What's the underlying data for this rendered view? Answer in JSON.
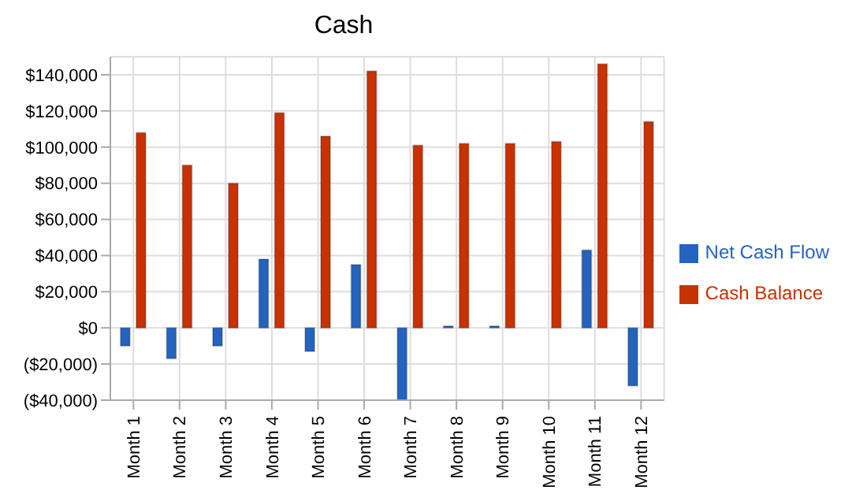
{
  "chart_data": {
    "type": "bar",
    "title": "Cash",
    "categories": [
      "Month 1",
      "Month 2",
      "Month 3",
      "Month 4",
      "Month 5",
      "Month 6",
      "Month 7",
      "Month 8",
      "Month 9",
      "Month 10",
      "Month 11",
      "Month 12"
    ],
    "series": [
      {
        "name": "Net Cash Flow",
        "color": "#2563c0",
        "values": [
          -10000,
          -17000,
          -10000,
          38000,
          -13000,
          35000,
          -40000,
          1000,
          1000,
          0,
          43000,
          -32000
        ]
      },
      {
        "name": "Cash Balance",
        "color": "#c83200",
        "values": [
          108000,
          90000,
          80000,
          119000,
          106000,
          142000,
          101000,
          102000,
          102000,
          103000,
          146000,
          114000
        ]
      }
    ],
    "ylim": [
      -40000,
      150000
    ],
    "yticks": [
      {
        "value": -40000,
        "label": "($40,000)"
      },
      {
        "value": -20000,
        "label": "($20,000)"
      },
      {
        "value": 0,
        "label": "$0"
      },
      {
        "value": 20000,
        "label": "$20,000"
      },
      {
        "value": 40000,
        "label": "$40,000"
      },
      {
        "value": 60000,
        "label": "$60,000"
      },
      {
        "value": 80000,
        "label": "$80,000"
      },
      {
        "value": 100000,
        "label": "$100,000"
      },
      {
        "value": 120000,
        "label": "$120,000"
      },
      {
        "value": 140000,
        "label": "$140,000"
      }
    ],
    "grid": true,
    "legend": "right"
  }
}
